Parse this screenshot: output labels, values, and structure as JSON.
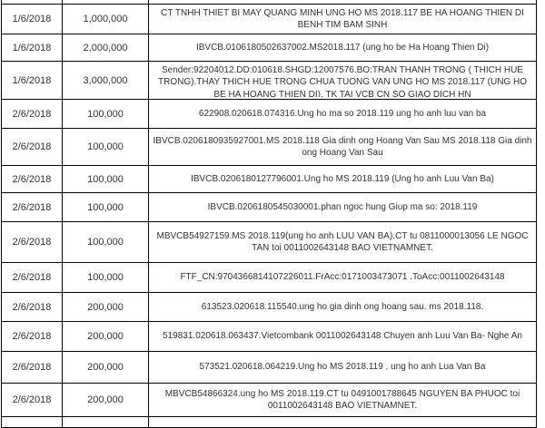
{
  "table": {
    "colors": {
      "border": "#000000",
      "text": "#333333",
      "background": "#ffffff"
    },
    "rows": [
      {
        "date": "1/6/2018",
        "amount": "1,000,000",
        "description": "CT TNHH THIET BI MAY QUANG MINH UNG HO MS 2018.117 BE HA HOANG THIEN DI BENH TIM BAM SINH"
      },
      {
        "date": "1/6/2018",
        "amount": "2,000,000",
        "description": "IBVCB.0106180502637002.MS2018.117 (ung ho be Ha Hoang Thien Di)"
      },
      {
        "date": "1/6/2018",
        "amount": "3,000,000",
        "description": "Sender:92204012.DD:010618.SHGD:12007576.BO:TRAN THANH TRONG ( THICH HUE TRONG).THAY THICH HUE TRONG CHUA TUONG VAN UNG HO MS 2018.117 (UNG HO BE HA HOANG THIEN DI). TK TAI VCB CN SO GIAO DICH HN"
      },
      {
        "date": "2/6/2018",
        "amount": "100,000",
        "description": "622908.020618.074316.Ung ho ma so 2018.119 ung ho anh luu van ba"
      },
      {
        "date": "2/6/2018",
        "amount": "100,000",
        "description": "IBVCB.0206180935927001.MS 2018.118 Gia dinh ong Hoang Van Sau MS 2018.118 Gia dinh ong Hoang Van Sau"
      },
      {
        "date": "2/6/2018",
        "amount": "100,000",
        "description": "IBVCB.0206180127796001.Ung ho MS 2018.119 (Ung ho anh Luu Van Ba)"
      },
      {
        "date": "2/6/2018",
        "amount": "100,000",
        "description": "IBVCB.0206180545030001.phan ngoc hung Giup ma so: 2018.119"
      },
      {
        "date": "2/6/2018",
        "amount": "100,000",
        "description": "MBVCB54927159.MS 2018.119(ung ho anh LUU VAN BA).CT tu 0811000013056 LE NGOC TAN toi 0011002643148 BAO VIETNAMNET."
      },
      {
        "date": "2/6/2018",
        "amount": "100,000",
        "description": "FTF_CN:9704366814107226011.FrAcc:0171003473071 .ToAcc:0011002643148"
      },
      {
        "date": "2/6/2018",
        "amount": "200,000",
        "description": "613523.020618.115540.ung ho gia dinh ong hoang sau. ms 2018.118."
      },
      {
        "date": "2/6/2018",
        "amount": "200,000",
        "description": "519831.020618.063437.Vietcombank 0011002643148 Chuyen anh Luu Van Ba- Nghe An"
      },
      {
        "date": "2/6/2018",
        "amount": "200,000",
        "description": "573521.020618.064219.Ung ho MS 2018.119 , ung ho anh Lua Van Ba"
      },
      {
        "date": "2/6/2018",
        "amount": "200,000",
        "description": "MBVCB54866324.ung ho MS 2018.119.CT tu 0491001788645 NGUYEN BA PHUOC toi 0011002643148 BAO VIETNAMNET."
      }
    ]
  }
}
